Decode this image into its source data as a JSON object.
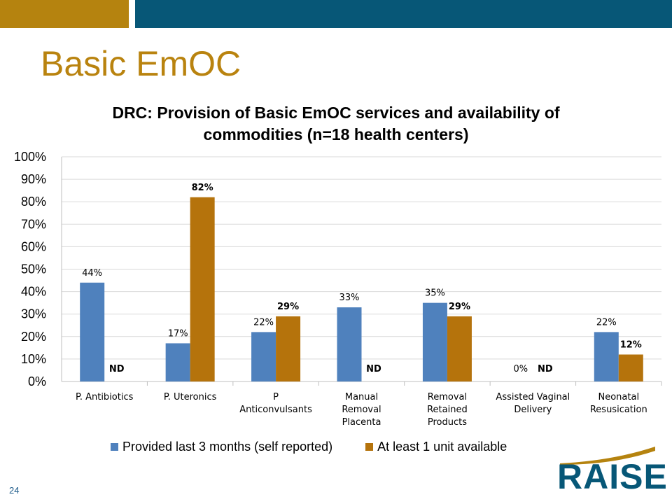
{
  "slide": {
    "title": "Basic EmOC",
    "page_number": "24",
    "logo_text": "RAISE"
  },
  "colors": {
    "series_provided": "#4f81bd",
    "series_available": "#b5730c",
    "accent_gold": "#b5830f",
    "accent_blue": "#075777",
    "gridline": "#d9d9d9"
  },
  "chart_data": {
    "type": "bar",
    "title_line1": "DRC: Provision of Basic EmOC services and availability of",
    "title_line2": "commodities (n=18 health centers)",
    "categories": [
      [
        "P. Antibiotics"
      ],
      [
        "P. Uteronics"
      ],
      [
        "P",
        "Anticonvulsants"
      ],
      [
        "Manual",
        "Removal",
        "Placenta"
      ],
      [
        "Removal",
        "Retained",
        "Products"
      ],
      [
        "Assisted Vaginal",
        "Delivery"
      ],
      [
        "Neonatal",
        "Resusication"
      ]
    ],
    "series": [
      {
        "name": "Provided last 3 months (self reported)",
        "values": [
          44,
          17,
          22,
          33,
          35,
          0,
          22
        ],
        "labels": [
          "44%",
          "17%",
          "22%",
          "33%",
          "35%",
          "0%",
          "22%"
        ]
      },
      {
        "name": "At least 1 unit available",
        "values": [
          null,
          82,
          29,
          null,
          29,
          null,
          12
        ],
        "labels": [
          "ND",
          "82%",
          "29%",
          "ND",
          "29%",
          "ND",
          "12%"
        ]
      }
    ],
    "y_ticks": [
      "0%",
      "10%",
      "20%",
      "30%",
      "40%",
      "50%",
      "60%",
      "70%",
      "80%",
      "90%",
      "100%"
    ],
    "ylim": [
      0,
      100
    ],
    "grid": true,
    "legend_position": "bottom"
  }
}
